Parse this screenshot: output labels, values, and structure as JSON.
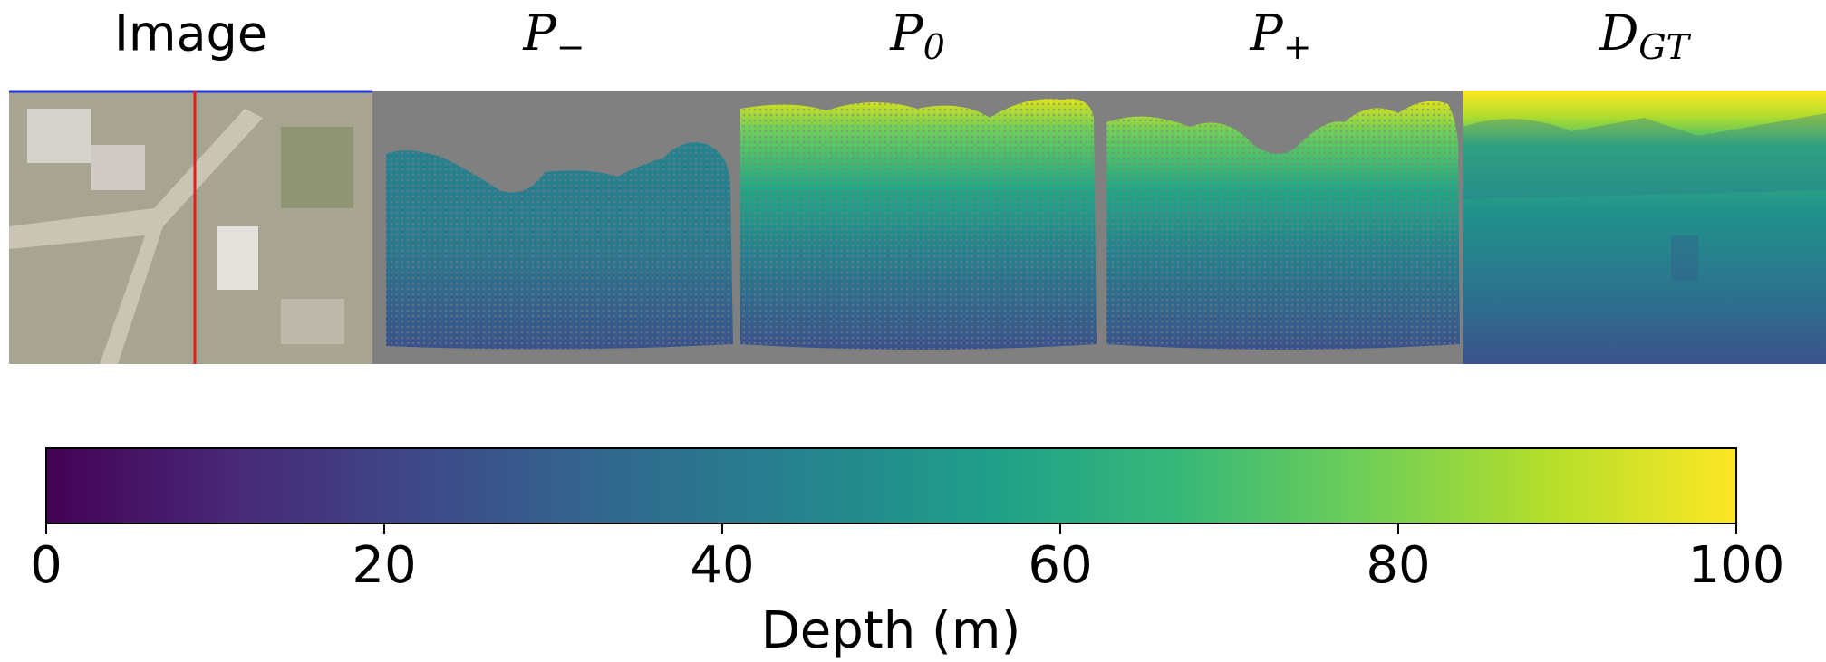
{
  "chart_data": {
    "type": "colorbar",
    "panels": [
      {
        "title": "Image"
      },
      {
        "title": "P",
        "sub": "−"
      },
      {
        "title": "P",
        "sub": "0"
      },
      {
        "title": "P",
        "sub": "+"
      },
      {
        "title": "D",
        "sub": "GT"
      }
    ],
    "xlabel": "Depth (m)",
    "xlim": [
      0,
      100
    ],
    "xticks": [
      0,
      20,
      40,
      60,
      80,
      100
    ],
    "colors": [
      "#440154",
      "#482878",
      "#3e4989",
      "#31688e",
      "#26828e",
      "#1f9e89",
      "#35b779",
      "#6ece58",
      "#b5de2b",
      "#fde725"
    ]
  }
}
